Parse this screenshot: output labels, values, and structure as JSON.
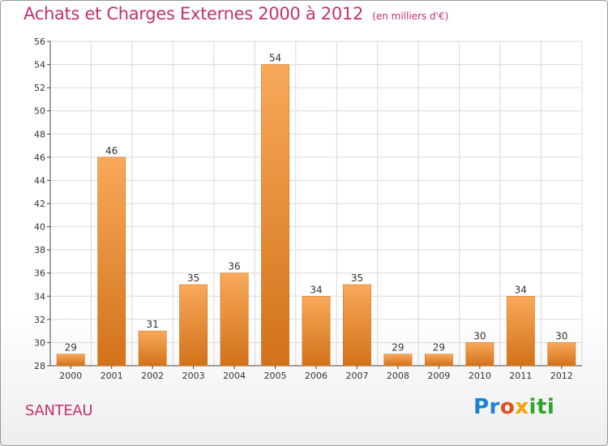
{
  "header": {
    "title": "Achats et Charges Externes 2000 à 2012",
    "subtitle": "(en milliers d'€)"
  },
  "footer": {
    "commune": "SANTEAU",
    "brand": {
      "p1": "Pr",
      "p2": "o",
      "p3": "x",
      "p4": "iti"
    }
  },
  "colors": {
    "bar_light": "#f8a95a",
    "bar_dark": "#d2721a",
    "grid": "#d9d9d9",
    "title": "#c43070"
  },
  "chart_data": {
    "type": "bar",
    "title": "Achats et Charges Externes 2000 à 2012",
    "subtitle": "(en milliers d'€)",
    "categories": [
      "2000",
      "2001",
      "2002",
      "2003",
      "2004",
      "2005",
      "2006",
      "2007",
      "2008",
      "2009",
      "2010",
      "2011",
      "2012"
    ],
    "values": [
      29,
      46,
      31,
      35,
      36,
      54,
      34,
      35,
      29,
      29,
      30,
      34,
      30
    ],
    "ylim": [
      28,
      56
    ],
    "yticks": [
      28,
      30,
      32,
      34,
      36,
      38,
      40,
      42,
      44,
      46,
      48,
      50,
      52,
      54,
      56
    ],
    "grid": true,
    "data_labels": true
  }
}
